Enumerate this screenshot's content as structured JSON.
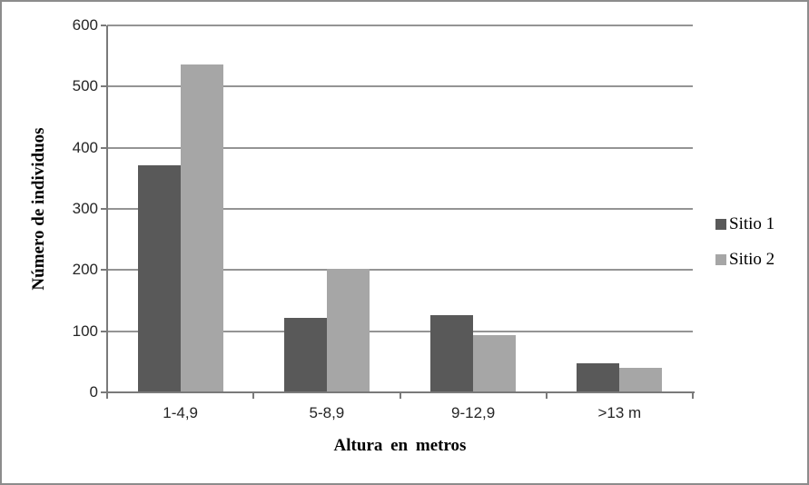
{
  "chart_data": {
    "type": "bar",
    "title": "",
    "categories": [
      "1-4,9",
      "5-8,9",
      "9-12,9",
      ">13 m"
    ],
    "series": [
      {
        "name": "Sitio 1",
        "color": "#595959",
        "values": [
          370,
          120,
          125,
          46
        ]
      },
      {
        "name": "Sitio 2",
        "color": "#A6A6A6",
        "values": [
          535,
          200,
          92,
          38
        ]
      }
    ],
    "xlabel": "Altura en metros",
    "ylabel": "Número de individuos",
    "ylim": [
      0,
      600
    ],
    "yticks": [
      0,
      100,
      200,
      300,
      400,
      500,
      600
    ],
    "grid": "horizontal-major",
    "legend_position": "right-middle"
  },
  "colors": {
    "gridline": "#949494",
    "axis": "#7a7a7a",
    "figure_border": "#8c8c8c",
    "tick_label_text": "#262626",
    "title_text": "#000000",
    "background": "#ffffff"
  }
}
